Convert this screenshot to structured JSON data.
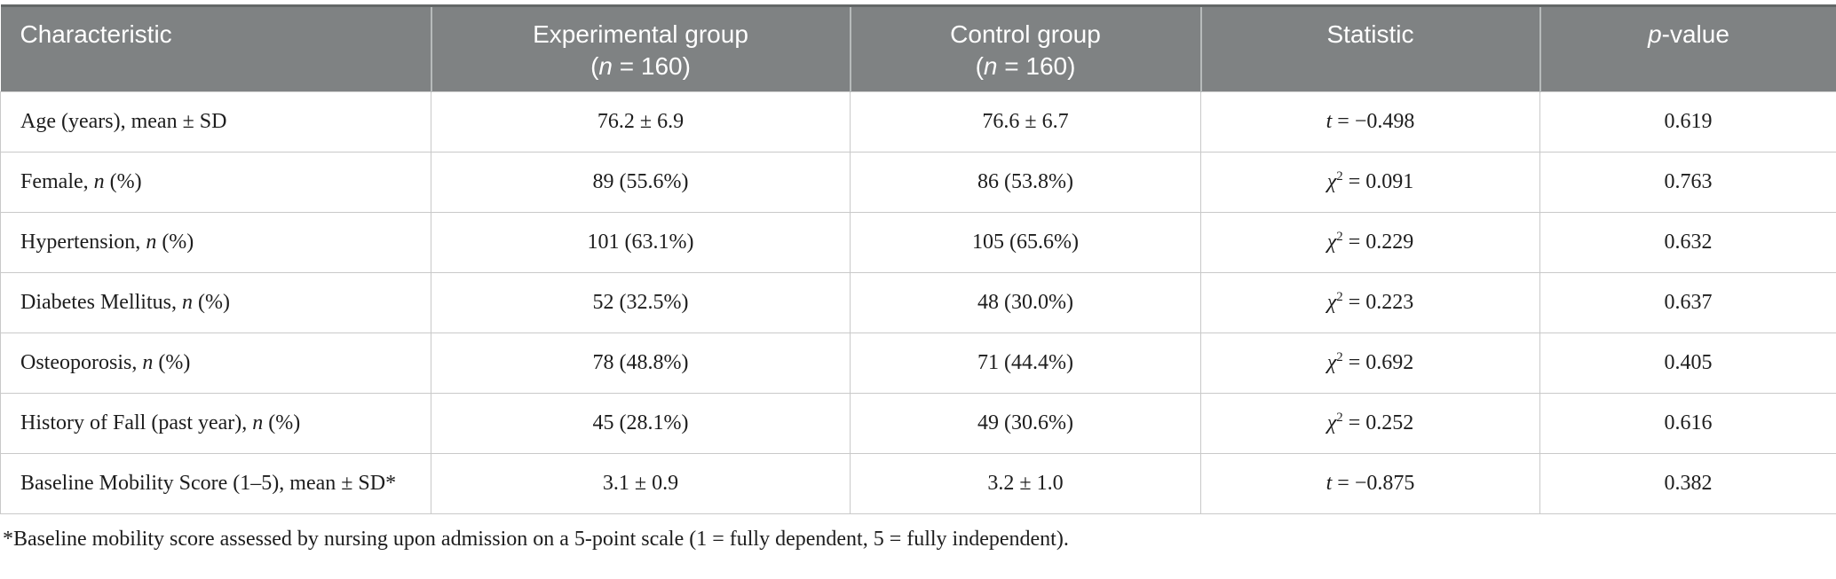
{
  "table": {
    "columns": [
      {
        "line1": "Characteristic",
        "line2": ""
      },
      {
        "line1": "Experimental group",
        "line2": [
          {
            "text": "("
          },
          {
            "text": "n",
            "italic": true
          },
          {
            "text": " = 160)"
          }
        ]
      },
      {
        "line1": "Control group",
        "line2": [
          {
            "text": "("
          },
          {
            "text": "n",
            "italic": true
          },
          {
            "text": " = 160)"
          }
        ]
      },
      {
        "line1": "Statistic",
        "line2": ""
      },
      {
        "line1": [
          {
            "text": "p",
            "italic": true
          },
          {
            "text": "-value"
          }
        ],
        "line2": ""
      }
    ],
    "rows": [
      {
        "characteristic": "Age (years), mean ± SD",
        "experimental": "76.2 ± 6.9",
        "control": "76.6 ± 6.7",
        "statistic": [
          {
            "text": "t",
            "italic": true
          },
          {
            "text": " = −0.498"
          }
        ],
        "p_value": "0.619"
      },
      {
        "characteristic": [
          {
            "text": "Female, "
          },
          {
            "text": "n",
            "italic": true
          },
          {
            "text": " (%)"
          }
        ],
        "experimental": "89 (55.6%)",
        "control": "86 (53.8%)",
        "statistic": [
          {
            "text": "χ",
            "italic": true
          },
          {
            "text": "2",
            "sup": true
          },
          {
            "text": " = 0.091"
          }
        ],
        "p_value": "0.763"
      },
      {
        "characteristic": [
          {
            "text": "Hypertension, "
          },
          {
            "text": "n",
            "italic": true
          },
          {
            "text": " (%)"
          }
        ],
        "experimental": "101 (63.1%)",
        "control": "105 (65.6%)",
        "statistic": [
          {
            "text": "χ",
            "italic": true
          },
          {
            "text": "2",
            "sup": true
          },
          {
            "text": " = 0.229"
          }
        ],
        "p_value": "0.632"
      },
      {
        "characteristic": [
          {
            "text": "Diabetes Mellitus, "
          },
          {
            "text": "n",
            "italic": true
          },
          {
            "text": " (%)"
          }
        ],
        "experimental": "52 (32.5%)",
        "control": "48 (30.0%)",
        "statistic": [
          {
            "text": "χ",
            "italic": true
          },
          {
            "text": "2",
            "sup": true
          },
          {
            "text": " = 0.223"
          }
        ],
        "p_value": "0.637"
      },
      {
        "characteristic": [
          {
            "text": "Osteoporosis, "
          },
          {
            "text": "n",
            "italic": true
          },
          {
            "text": " (%)"
          }
        ],
        "experimental": "78 (48.8%)",
        "control": "71 (44.4%)",
        "statistic": [
          {
            "text": "χ",
            "italic": true
          },
          {
            "text": "2",
            "sup": true
          },
          {
            "text": " = 0.692"
          }
        ],
        "p_value": "0.405"
      },
      {
        "characteristic": [
          {
            "text": "History of Fall (past year), "
          },
          {
            "text": "n",
            "italic": true
          },
          {
            "text": " (%)"
          }
        ],
        "experimental": "45 (28.1%)",
        "control": "49 (30.6%)",
        "statistic": [
          {
            "text": "χ",
            "italic": true
          },
          {
            "text": "2",
            "sup": true
          },
          {
            "text": " = 0.252"
          }
        ],
        "p_value": "0.616"
      },
      {
        "characteristic": "Baseline Mobility Score (1–5), mean ± SD*",
        "experimental": "3.1 ± 0.9",
        "control": "3.2 ± 1.0",
        "statistic": [
          {
            "text": "t",
            "italic": true
          },
          {
            "text": " = −0.875"
          }
        ],
        "p_value": "0.382"
      }
    ],
    "footnote": "*Baseline mobility score assessed by nursing upon admission on a 5-point scale (1 = fully dependent, 5 = fully independent)."
  },
  "colors": {
    "header_bg": "#7f8283",
    "header_text": "#ffffff",
    "header_divider": "#b7bbbb",
    "top_border": "#636767",
    "border": "#c9c9c9",
    "body_text": "#1d1d1d"
  }
}
